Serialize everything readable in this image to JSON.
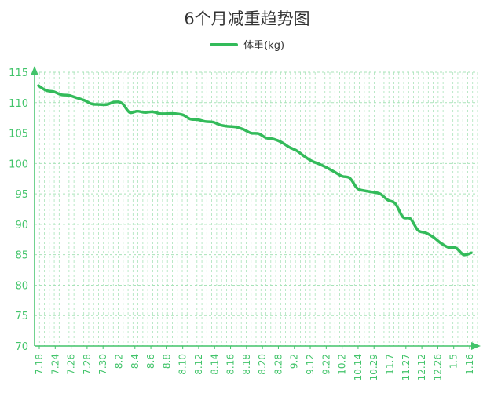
{
  "title": "6个月减重趋势图",
  "legend": {
    "label": "体重(kg)"
  },
  "colors": {
    "line": "#33bb5a",
    "axis": "#42c46a",
    "grid": "#a9e3b9",
    "text": "#333333"
  },
  "chart_data": {
    "type": "line",
    "title": "6个月减重趋势图",
    "xlabel": "",
    "ylabel": "",
    "ylim": [
      70,
      115
    ],
    "yticks": [
      70,
      75,
      80,
      85,
      90,
      95,
      100,
      105,
      110,
      115
    ],
    "grid": true,
    "legend_position": "top-center",
    "x_tick_labels": [
      "7.18",
      "7.24",
      "7.26",
      "7.28",
      "7.30",
      "8.2",
      "8.4",
      "8.6",
      "8.8",
      "8.10",
      "8.12",
      "8.14",
      "8.16",
      "8.18",
      "8.20",
      "8.28",
      "9.2",
      "9.12",
      "9.22",
      "10.2",
      "10.14",
      "10.29",
      "11.7",
      "11.27",
      "12.12",
      "12.26",
      "1.5",
      "1.16"
    ],
    "series": [
      {
        "name": "体重(kg)",
        "values": [
          112.8,
          112.0,
          111.8,
          111.3,
          111.2,
          110.8,
          110.4,
          109.8,
          109.7,
          109.7,
          110.1,
          109.9,
          108.4,
          108.6,
          108.4,
          108.5,
          108.2,
          108.2,
          108.2,
          108.0,
          107.3,
          107.2,
          106.9,
          106.8,
          106.3,
          106.1,
          106.0,
          105.6,
          105.0,
          104.9,
          104.2,
          104.0,
          103.5,
          102.7,
          102.1,
          101.2,
          100.4,
          99.9,
          99.3,
          98.6,
          97.9,
          97.6,
          95.9,
          95.5,
          95.3,
          95.0,
          94.0,
          93.4,
          91.2,
          90.9,
          89.0,
          88.6,
          87.9,
          86.9,
          86.2,
          86.1,
          85.0,
          85.3
        ]
      }
    ]
  }
}
